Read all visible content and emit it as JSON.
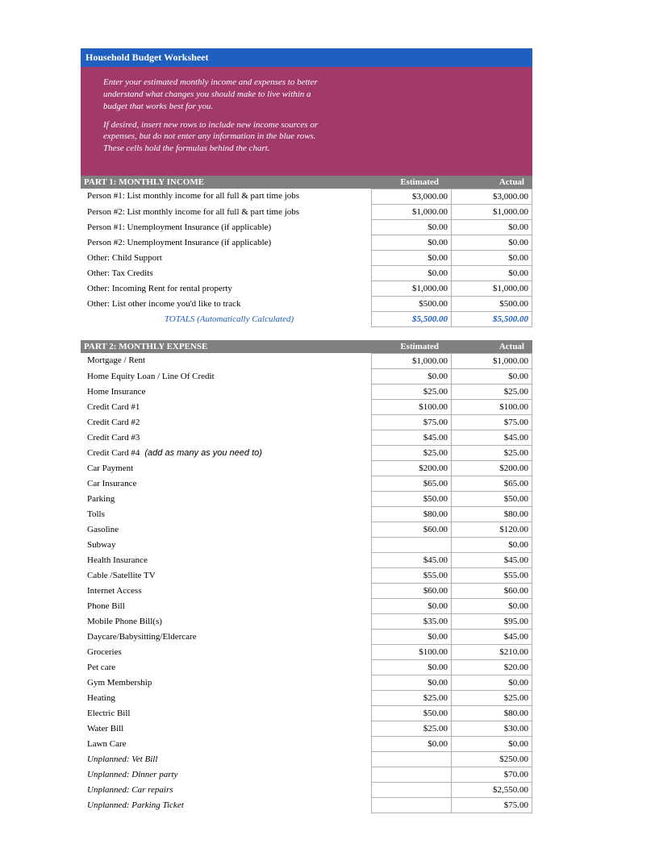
{
  "title": "Household Budget Worksheet",
  "intro": {
    "p1": "Enter your estimated monthly income and expenses to better understand what changes you should make to live within a budget that works best for you.",
    "p2": "If desired, insert new rows to include new income sources or expenses, but do not enter any information in the blue rows. These cells hold the formulas behind the chart."
  },
  "colors": {
    "title_bg": "#1f5fbf",
    "intro_bg": "#a13a6b",
    "header_bg": "#808080",
    "accent_text": "#1f5fbf",
    "grid_border": "#b0b0b0"
  },
  "part1": {
    "title": "PART 1: MONTHLY INCOME",
    "col_est": "Estimated",
    "col_act": "Actual",
    "rows": [
      {
        "label": "Person #1: List monthly income for all full & part time jobs",
        "est": "$3,000.00",
        "act": "$3,000.00"
      },
      {
        "label": "Person #2: List monthly income for all full & part time jobs",
        "est": "$1,000.00",
        "act": "$1,000.00"
      },
      {
        "label": "Person #1: Unemployment Insurance (if applicable)",
        "est": "$0.00",
        "act": "$0.00"
      },
      {
        "label": "Person #2: Unemployment Insurance (if applicable)",
        "est": "$0.00",
        "act": "$0.00"
      },
      {
        "label": "Other: Child Support",
        "est": "$0.00",
        "act": "$0.00"
      },
      {
        "label": "Other: Tax Credits",
        "est": "$0.00",
        "act": "$0.00"
      },
      {
        "label": "Other: Incoming Rent for rental property",
        "est": "$1,000.00",
        "act": "$1,000.00"
      },
      {
        "label": "Other: List other income you'd like to track",
        "est": "$500.00",
        "act": "$500.00"
      }
    ],
    "totals": {
      "label": "TOTALS (Automatically Calculated)",
      "est": "$5,500.00",
      "act": "$5,500.00"
    }
  },
  "part2": {
    "title": "PART 2: MONTHLY EXPENSE",
    "col_est": "Estimated",
    "col_act": "Actual",
    "rows": [
      {
        "label": "Mortgage / Rent",
        "est": "$1,000.00",
        "act": "$1,000.00"
      },
      {
        "label": "Home Equity Loan / Line Of Credit",
        "est": "$0.00",
        "act": "$0.00"
      },
      {
        "label": "Home Insurance",
        "est": "$25.00",
        "act": "$25.00"
      },
      {
        "label": "Credit Card #1",
        "est": "$100.00",
        "act": "$100.00"
      },
      {
        "label": "Credit Card #2",
        "est": "$75.00",
        "act": "$75.00"
      },
      {
        "label": "Credit Card #3",
        "est": "$45.00",
        "act": "$45.00"
      },
      {
        "label": "Credit Card #4",
        "note": "(add as many as you need to)",
        "est": "$25.00",
        "act": "$25.00"
      },
      {
        "label": "Car Payment",
        "est": "$200.00",
        "act": "$200.00"
      },
      {
        "label": "Car Insurance",
        "est": "$65.00",
        "act": "$65.00"
      },
      {
        "label": "Parking",
        "est": "$50.00",
        "act": "$50.00"
      },
      {
        "label": "Tolls",
        "est": "$80.00",
        "act": "$80.00"
      },
      {
        "label": "Gasoline",
        "est": "$60.00",
        "act": "$120.00"
      },
      {
        "label": "Subway",
        "est": "",
        "act": "$0.00"
      },
      {
        "label": "Health Insurance",
        "est": "$45.00",
        "act": "$45.00"
      },
      {
        "label": "Cable /Satellite TV",
        "est": "$55.00",
        "act": "$55.00"
      },
      {
        "label": "Internet Access",
        "est": "$60.00",
        "act": "$60.00"
      },
      {
        "label": "Phone Bill",
        "est": "$0.00",
        "act": "$0.00"
      },
      {
        "label": "Mobile Phone Bill(s)",
        "est": "$35.00",
        "act": "$95.00"
      },
      {
        "label": "Daycare/Babysitting/Eldercare",
        "est": "$0.00",
        "act": "$45.00"
      },
      {
        "label": "Groceries",
        "est": "$100.00",
        "act": "$210.00"
      },
      {
        "label": "Pet care",
        "est": "$0.00",
        "act": "$20.00"
      },
      {
        "label": "Gym Membership",
        "est": "$0.00",
        "act": "$0.00"
      },
      {
        "label": "Heating",
        "est": "$25.00",
        "act": "$25.00"
      },
      {
        "label": "Electric Bill",
        "est": "$50.00",
        "act": "$80.00"
      },
      {
        "label": "Water Bill",
        "est": "$25.00",
        "act": "$30.00"
      },
      {
        "label": "Lawn Care",
        "est": "$0.00",
        "act": "$0.00"
      },
      {
        "label": "Unplanned: Vet Bill",
        "italic": true,
        "est": "",
        "act": "$250.00"
      },
      {
        "label": "Unplanned: Dinner party",
        "italic": true,
        "est": "",
        "act": "$70.00"
      },
      {
        "label": "Unplanned: Car repairs",
        "italic": true,
        "est": "",
        "act": "$2,550.00"
      },
      {
        "label": "Unplanned: Parking Ticket",
        "italic": true,
        "est": "",
        "act": "$75.00"
      }
    ]
  }
}
